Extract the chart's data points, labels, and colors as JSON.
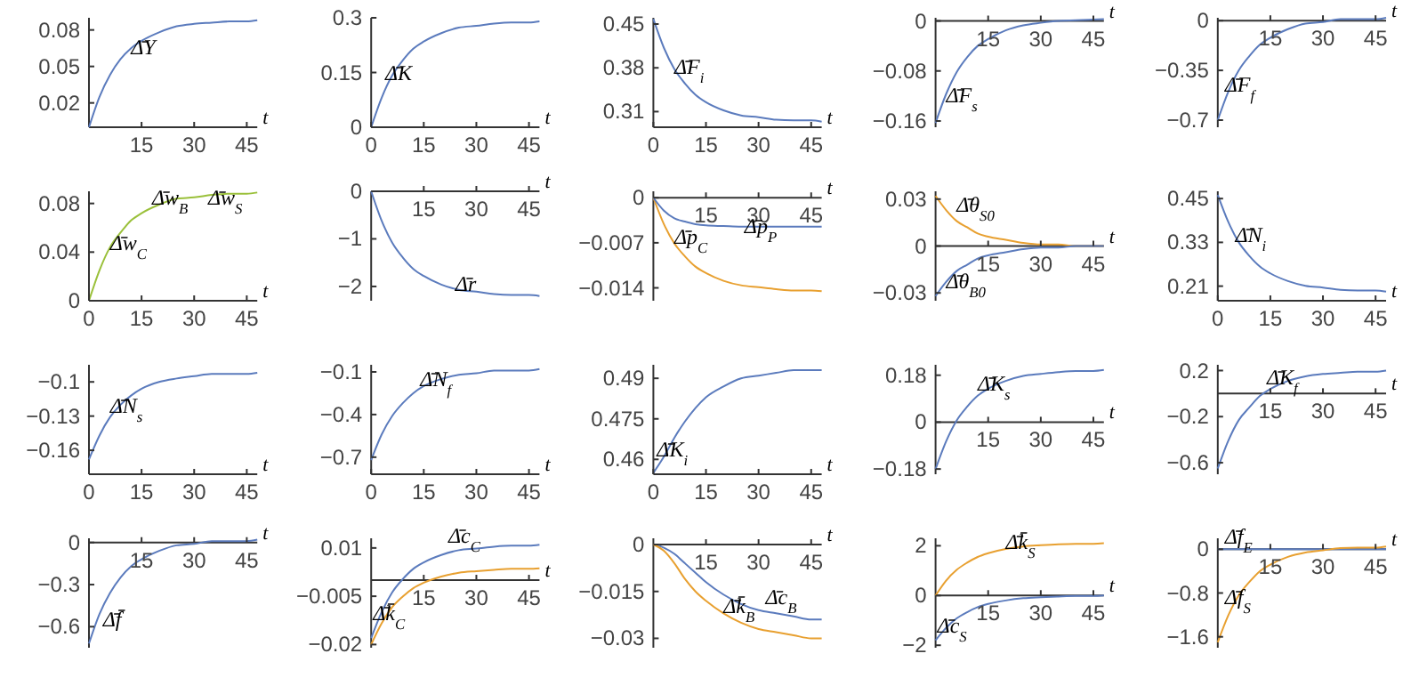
{
  "chart_data": [
    {
      "type": "line",
      "xlabel": "t",
      "x": [
        0,
        3,
        6,
        9,
        12,
        15,
        20,
        25,
        30,
        35,
        40,
        45,
        48
      ],
      "xlim": [
        0,
        48
      ],
      "xticks": [
        15,
        30,
        45
      ],
      "ylim": [
        0,
        0.09
      ],
      "yticks": [
        0.02,
        0.05,
        0.08
      ],
      "series": [
        {
          "color": "#5b7bbd",
          "values": [
            0,
            0.025,
            0.043,
            0.056,
            0.065,
            0.071,
            0.078,
            0.083,
            0.085,
            0.086,
            0.087,
            0.087,
            0.088
          ]
        }
      ],
      "annotations": [
        {
          "text": "Δ̄Y",
          "x": 12,
          "y": 0.06
        }
      ]
    },
    {
      "type": "line",
      "xlabel": "t",
      "x": [
        0,
        3,
        6,
        9,
        12,
        15,
        20,
        25,
        30,
        35,
        40,
        45,
        48
      ],
      "xlim": [
        0,
        48
      ],
      "xticks": [
        0,
        15,
        30,
        45
      ],
      "ylim": [
        0,
        0.3
      ],
      "yticks": [
        0,
        0.15,
        0.3
      ],
      "series": [
        {
          "color": "#5b7bbd",
          "values": [
            0,
            0.081,
            0.142,
            0.183,
            0.215,
            0.235,
            0.258,
            0.273,
            0.278,
            0.284,
            0.287,
            0.287,
            0.29
          ]
        }
      ],
      "annotations": [
        {
          "text": "Δ̄K",
          "x": 4,
          "y": 0.13
        }
      ]
    },
    {
      "type": "line",
      "xlabel": "t",
      "x": [
        0,
        3,
        6,
        9,
        12,
        15,
        20,
        25,
        30,
        35,
        40,
        45,
        48
      ],
      "xlim": [
        0,
        48
      ],
      "xticks": [
        0,
        15,
        30,
        45
      ],
      "ylim": [
        0.285,
        0.46
      ],
      "yticks": [
        0.31,
        0.38,
        0.45
      ],
      "series": [
        {
          "color": "#5b7bbd",
          "values": [
            0.458,
            0.412,
            0.378,
            0.355,
            0.337,
            0.325,
            0.312,
            0.304,
            0.301,
            0.297,
            0.296,
            0.296,
            0.294
          ]
        }
      ],
      "annotations": [
        {
          "text": "Δ̄F$_{i}$",
          "x": 6,
          "y": 0.37
        }
      ]
    },
    {
      "type": "line",
      "xlabel": "t",
      "x": [
        0,
        3,
        6,
        9,
        12,
        15,
        20,
        25,
        30,
        35,
        40,
        45,
        48
      ],
      "xlim": [
        0,
        48
      ],
      "xticks": [
        15,
        30,
        45
      ],
      "ylim": [
        -0.17,
        0.005
      ],
      "yticks": [
        -0.16,
        -0.08,
        0
      ],
      "series": [
        {
          "color": "#5b7bbd",
          "values": [
            -0.163,
            -0.117,
            -0.082,
            -0.058,
            -0.04,
            -0.029,
            -0.015,
            -0.007,
            -0.003,
            0,
            0.001,
            0.002,
            0.003
          ]
        }
      ],
      "annotations": [
        {
          "text": "Δ̄F$_{s}$",
          "x": 3,
          "y": -0.13
        }
      ]
    },
    {
      "type": "line",
      "xlabel": "t",
      "x": [
        0,
        3,
        6,
        9,
        12,
        15,
        20,
        25,
        30,
        35,
        40,
        45,
        48
      ],
      "xlim": [
        0,
        48
      ],
      "xticks": [
        15,
        30,
        45
      ],
      "ylim": [
        -0.75,
        0.02
      ],
      "yticks": [
        -0.7,
        -0.35,
        0
      ],
      "series": [
        {
          "color": "#5b7bbd",
          "values": [
            -0.7,
            -0.5,
            -0.35,
            -0.25,
            -0.17,
            -0.12,
            -0.06,
            -0.02,
            -0.01,
            0.01,
            0.01,
            0.01,
            0.02
          ]
        }
      ],
      "annotations": [
        {
          "text": "Δ̄F$_{f}$",
          "x": 2,
          "y": -0.5
        }
      ]
    },
    {
      "type": "line",
      "xlabel": "t",
      "x": [
        0,
        3,
        6,
        9,
        12,
        15,
        20,
        25,
        30,
        35,
        40,
        45,
        48
      ],
      "xlim": [
        0,
        48
      ],
      "xticks": [
        0,
        15,
        30,
        45
      ],
      "ylim": [
        0,
        0.09
      ],
      "yticks": [
        0,
        0.04,
        0.08
      ],
      "series": [
        {
          "color": "#9ac03a",
          "values": [
            0,
            0.025,
            0.044,
            0.056,
            0.066,
            0.072,
            0.079,
            0.084,
            0.085,
            0.087,
            0.088,
            0.088,
            0.089
          ]
        }
      ],
      "annotations": [
        {
          "text": "Δ̄w$_{C}$",
          "x": 6,
          "y": 0.042
        },
        {
          "text": "Δ̄w$_{B}$",
          "x": 18,
          "y": 0.079
        },
        {
          "text": "Δ̄w$_{S}$",
          "x": 34,
          "y": 0.079
        }
      ]
    },
    {
      "type": "line",
      "xlabel": "t",
      "x": [
        0,
        3,
        6,
        9,
        12,
        15,
        20,
        25,
        30,
        35,
        40,
        45,
        48
      ],
      "xlim": [
        0,
        48
      ],
      "xticks": [
        15,
        30,
        45
      ],
      "ylim": [
        -2.3,
        0
      ],
      "yticks": [
        -2,
        -1,
        0
      ],
      "series": [
        {
          "color": "#5b7bbd",
          "values": [
            0,
            -0.62,
            -1.08,
            -1.39,
            -1.63,
            -1.78,
            -1.96,
            -2.07,
            -2.11,
            -2.16,
            -2.18,
            -2.18,
            -2.2
          ]
        }
      ],
      "annotations": [
        {
          "text": "Δ̄r",
          "x": 24,
          "y": -2.1
        }
      ]
    },
    {
      "type": "line",
      "xlabel": "t",
      "x": [
        0,
        3,
        6,
        9,
        12,
        15,
        20,
        25,
        30,
        35,
        40,
        45,
        48
      ],
      "xlim": [
        0,
        48
      ],
      "xticks": [
        15,
        30,
        45
      ],
      "ylim": [
        -0.016,
        0.001
      ],
      "yticks": [
        -0.014,
        -0.007,
        0
      ],
      "series": [
        {
          "color": "#e8a030",
          "values": [
            0,
            -0.0041,
            -0.0071,
            -0.0091,
            -0.0107,
            -0.0117,
            -0.0129,
            -0.0136,
            -0.0139,
            -0.0142,
            -0.0144,
            -0.0144,
            -0.0145
          ]
        },
        {
          "color": "#5b7bbd",
          "values": [
            0,
            -0.002,
            -0.0032,
            -0.0037,
            -0.0041,
            -0.0043,
            -0.0044,
            -0.0045,
            -0.0045,
            -0.0045,
            -0.0045,
            -0.0045,
            -0.0045
          ]
        }
      ],
      "annotations": [
        {
          "text": "Δ̄p$_{C}$",
          "x": 6,
          "y": -0.0071
        },
        {
          "text": "Δ̄p$_{P}$",
          "x": 26,
          "y": -0.0055
        }
      ]
    },
    {
      "type": "line",
      "xlabel": "t",
      "x": [
        0,
        3,
        6,
        9,
        12,
        15,
        20,
        25,
        30,
        35,
        40,
        45,
        48
      ],
      "xlim": [
        0,
        48
      ],
      "xticks": [
        15,
        30,
        45
      ],
      "ylim": [
        -0.035,
        0.035
      ],
      "yticks": [
        -0.03,
        0,
        0.03
      ],
      "series": [
        {
          "color": "#e8a030",
          "values": [
            0.032,
            0.023,
            0.016,
            0.012,
            0.008,
            0.006,
            0.004,
            0.002,
            0.001,
            0.001,
            0,
            0,
            0
          ]
        },
        {
          "color": "#5b7bbd",
          "values": [
            -0.032,
            -0.023,
            -0.016,
            -0.012,
            -0.008,
            -0.006,
            -0.004,
            -0.002,
            -0.001,
            -0.001,
            0,
            0,
            0
          ]
        }
      ],
      "annotations": [
        {
          "text": "Δ̄θ$_{S0}$",
          "x": 6,
          "y": 0.022
        },
        {
          "text": "Δ̄θ$_{B0}$",
          "x": 3,
          "y": -0.027
        }
      ]
    },
    {
      "type": "line",
      "xlabel": "t",
      "x": [
        0,
        3,
        6,
        9,
        12,
        15,
        20,
        25,
        30,
        35,
        40,
        45,
        48
      ],
      "xlim": [
        0,
        48
      ],
      "xticks": [
        0,
        15,
        30,
        45
      ],
      "ylim": [
        0.17,
        0.47
      ],
      "yticks": [
        0.21,
        0.33,
        0.45
      ],
      "series": [
        {
          "color": "#5b7bbd",
          "values": [
            0.46,
            0.386,
            0.33,
            0.293,
            0.264,
            0.245,
            0.224,
            0.211,
            0.206,
            0.2,
            0.198,
            0.198,
            0.195
          ]
        }
      ],
      "annotations": [
        {
          "text": "Δ̄N$_{i}$",
          "x": 5,
          "y": 0.33
        }
      ]
    },
    {
      "type": "line",
      "xlabel": "t",
      "x": [
        0,
        3,
        6,
        9,
        12,
        15,
        20,
        25,
        30,
        35,
        40,
        45,
        48
      ],
      "xlim": [
        0,
        48
      ],
      "xticks": [
        0,
        15,
        30,
        45
      ],
      "ylim": [
        -0.181,
        -0.085
      ],
      "yticks": [
        -0.16,
        -0.13,
        -0.1
      ],
      "series": [
        {
          "color": "#5b7bbd",
          "values": [
            -0.168,
            -0.147,
            -0.131,
            -0.12,
            -0.112,
            -0.106,
            -0.1,
            -0.097,
            -0.095,
            -0.093,
            -0.093,
            -0.093,
            -0.092
          ]
        }
      ],
      "annotations": [
        {
          "text": "Δ̄N$_{s}$",
          "x": 6,
          "y": -0.127
        }
      ]
    },
    {
      "type": "line",
      "xlabel": "t",
      "x": [
        0,
        3,
        6,
        9,
        12,
        15,
        20,
        25,
        30,
        35,
        40,
        45,
        48
      ],
      "xlim": [
        0,
        48
      ],
      "xticks": [
        0,
        15,
        30,
        45
      ],
      "ylim": [
        -0.82,
        -0.05
      ],
      "yticks": [
        -0.7,
        -0.4,
        -0.1
      ],
      "series": [
        {
          "color": "#5b7bbd",
          "values": [
            -0.72,
            -0.54,
            -0.41,
            -0.32,
            -0.25,
            -0.2,
            -0.15,
            -0.12,
            -0.11,
            -0.09,
            -0.09,
            -0.09,
            -0.08
          ]
        }
      ],
      "annotations": [
        {
          "text": "Δ̄N$_{f}$",
          "x": 14,
          "y": -0.2
        }
      ]
    },
    {
      "type": "line",
      "xlabel": "t",
      "x": [
        0,
        3,
        6,
        9,
        12,
        15,
        20,
        25,
        30,
        35,
        40,
        45,
        48
      ],
      "xlim": [
        0,
        48
      ],
      "xticks": [
        0,
        15,
        30,
        45
      ],
      "ylim": [
        0.4545,
        0.495
      ],
      "yticks": [
        0.46,
        0.475,
        0.49
      ],
      "series": [
        {
          "color": "#5b7bbd",
          "values": [
            0.455,
            0.461,
            0.468,
            0.474,
            0.479,
            0.483,
            0.487,
            0.49,
            0.491,
            0.492,
            0.493,
            0.493,
            0.493
          ]
        }
      ],
      "annotations": [
        {
          "text": "Δ̄K$_{i}$",
          "x": 1,
          "y": 0.461
        }
      ]
    },
    {
      "type": "line",
      "xlabel": "t",
      "x": [
        0,
        3,
        6,
        9,
        12,
        15,
        20,
        25,
        30,
        35,
        40,
        45,
        48
      ],
      "xlim": [
        0,
        48
      ],
      "xticks": [
        15,
        30,
        45
      ],
      "ylim": [
        -0.2,
        0.22
      ],
      "yticks": [
        -0.18,
        0,
        0.18
      ],
      "series": [
        {
          "color": "#5b7bbd",
          "values": [
            -0.18,
            -0.074,
            0.006,
            0.059,
            0.101,
            0.128,
            0.158,
            0.177,
            0.185,
            0.192,
            0.196,
            0.196,
            0.2
          ]
        }
      ],
      "annotations": [
        {
          "text": "Δ̄K$_{s}$",
          "x": 12,
          "y": 0.12
        }
      ]
    },
    {
      "type": "line",
      "xlabel": "t",
      "x": [
        0,
        3,
        6,
        9,
        12,
        15,
        20,
        25,
        30,
        35,
        40,
        45,
        48
      ],
      "xlim": [
        0,
        48
      ],
      "xticks": [
        15,
        30,
        45
      ],
      "ylim": [
        -0.7,
        0.25
      ],
      "yticks": [
        -0.6,
        -0.2,
        0.2
      ],
      "series": [
        {
          "color": "#5b7bbd",
          "values": [
            -0.65,
            -0.41,
            -0.23,
            -0.12,
            -0.02,
            0.04,
            0.11,
            0.15,
            0.17,
            0.18,
            0.19,
            0.19,
            0.2
          ]
        }
      ],
      "annotations": [
        {
          "text": "Δ̄K$_{f}$",
          "x": 14,
          "y": 0.08
        }
      ]
    },
    {
      "type": "line",
      "xlabel": "t",
      "x": [
        0,
        3,
        6,
        9,
        12,
        15,
        20,
        25,
        30,
        35,
        40,
        45,
        48
      ],
      "xlim": [
        0,
        48
      ],
      "xticks": [
        15,
        30,
        45
      ],
      "ylim": [
        -0.75,
        0.03
      ],
      "yticks": [
        -0.6,
        -0.3,
        0
      ],
      "series": [
        {
          "color": "#5b7bbd",
          "values": [
            -0.72,
            -0.51,
            -0.36,
            -0.25,
            -0.17,
            -0.12,
            -0.06,
            -0.02,
            -0.01,
            0.01,
            0.01,
            0.01,
            0.02
          ]
        }
      ],
      "annotations": [
        {
          "text": "Δ̄f̄",
          "x": 4,
          "y": -0.6
        }
      ]
    },
    {
      "type": "line",
      "xlabel": "t",
      "x": [
        0,
        3,
        6,
        9,
        12,
        15,
        20,
        25,
        30,
        35,
        40,
        45,
        48
      ],
      "xlim": [
        0,
        48
      ],
      "xticks": [
        15,
        30,
        45
      ],
      "ylim": [
        -0.021,
        0.013
      ],
      "yticks": [
        -0.02,
        -0.005,
        0.01
      ],
      "series": [
        {
          "color": "#5b7bbd",
          "values": [
            -0.018,
            -0.0099,
            -0.0038,
            0.0003,
            0.0035,
            0.0055,
            0.0078,
            0.0093,
            0.0098,
            0.0104,
            0.0107,
            0.0107,
            0.011
          ]
        },
        {
          "color": "#e8a030",
          "values": [
            -0.02,
            -0.0134,
            -0.0084,
            -0.0051,
            -0.0025,
            -0.0008,
            0.0011,
            0.0023,
            0.0028,
            0.0032,
            0.0035,
            0.0035,
            0.0037
          ]
        }
      ],
      "annotations": [
        {
          "text": "Δ̄c$_{C}$",
          "x": 22,
          "y": 0.0115
        },
        {
          "text": "Δ̄k̄$_{C}$",
          "x": 0.5,
          "y": -0.0125
        }
      ]
    },
    {
      "type": "line",
      "xlabel": "t",
      "x": [
        0,
        3,
        6,
        9,
        12,
        15,
        20,
        25,
        30,
        35,
        40,
        45,
        48
      ],
      "xlim": [
        0,
        48
      ],
      "xticks": [
        15,
        30,
        45
      ],
      "ylim": [
        -0.033,
        0.002
      ],
      "yticks": [
        -0.03,
        -0.015,
        0
      ],
      "series": [
        {
          "color": "#5b7bbd",
          "values": [
            0,
            -0.001,
            -0.003,
            -0.006,
            -0.009,
            -0.012,
            -0.016,
            -0.019,
            -0.021,
            -0.022,
            -0.023,
            -0.024,
            -0.024
          ]
        },
        {
          "color": "#e8a030",
          "values": [
            0,
            -0.002,
            -0.006,
            -0.011,
            -0.015,
            -0.018,
            -0.022,
            -0.025,
            -0.027,
            -0.028,
            -0.029,
            -0.03,
            -0.03
          ]
        }
      ],
      "annotations": [
        {
          "text": "Δ̄c$_{B}$",
          "x": 32,
          "y": -0.019
        },
        {
          "text": "Δ̄k̄$_{B}$",
          "x": 20,
          "y": -0.022
        }
      ]
    },
    {
      "type": "line",
      "xlabel": "t",
      "x": [
        0,
        3,
        6,
        9,
        12,
        15,
        20,
        25,
        30,
        35,
        40,
        45,
        48
      ],
      "xlim": [
        0,
        48
      ],
      "xticks": [
        15,
        30,
        45
      ],
      "ylim": [
        -2.1,
        2.3
      ],
      "yticks": [
        -2,
        0,
        2
      ],
      "series": [
        {
          "color": "#e8a030",
          "values": [
            0,
            0.6,
            1.03,
            1.32,
            1.55,
            1.7,
            1.87,
            1.97,
            2.02,
            2.06,
            2.08,
            2.08,
            2.1
          ]
        },
        {
          "color": "#5b7bbd",
          "values": [
            -1.8,
            -1.3,
            -0.92,
            -0.67,
            -0.47,
            -0.34,
            -0.2,
            -0.11,
            -0.07,
            -0.04,
            -0.02,
            -0.02,
            0
          ]
        }
      ],
      "annotations": [
        {
          "text": "Δ̄k̄$_{S}$",
          "x": 20,
          "y": 1.87
        },
        {
          "text": "Δ̄c$_{S}$",
          "x": 0.5,
          "y": -1.5
        }
      ]
    },
    {
      "type": "line",
      "xlabel": "t",
      "x": [
        0,
        3,
        6,
        9,
        12,
        15,
        20,
        25,
        30,
        35,
        40,
        45,
        48
      ],
      "xlim": [
        0,
        48
      ],
      "xticks": [
        15,
        30,
        45
      ],
      "ylim": [
        -1.8,
        0.2
      ],
      "yticks": [
        -1.6,
        -0.8,
        0
      ],
      "series": [
        {
          "color": "#5b7bbd",
          "values": [
            0,
            0,
            0,
            0,
            0,
            0,
            0,
            0,
            0,
            0,
            0,
            0,
            0
          ]
        },
        {
          "color": "#e8a030",
          "values": [
            -1.7,
            -1.21,
            -0.84,
            -0.6,
            -0.4,
            -0.28,
            -0.14,
            -0.06,
            -0.02,
            0.02,
            0.03,
            0.03,
            0.05
          ]
        }
      ],
      "annotations": [
        {
          "text": "Δ̄f$_{E}$",
          "x": 2,
          "y": 0.1
        },
        {
          "text": "Δ̄f$_{S}$",
          "x": 2,
          "y": -1.0
        }
      ]
    }
  ]
}
